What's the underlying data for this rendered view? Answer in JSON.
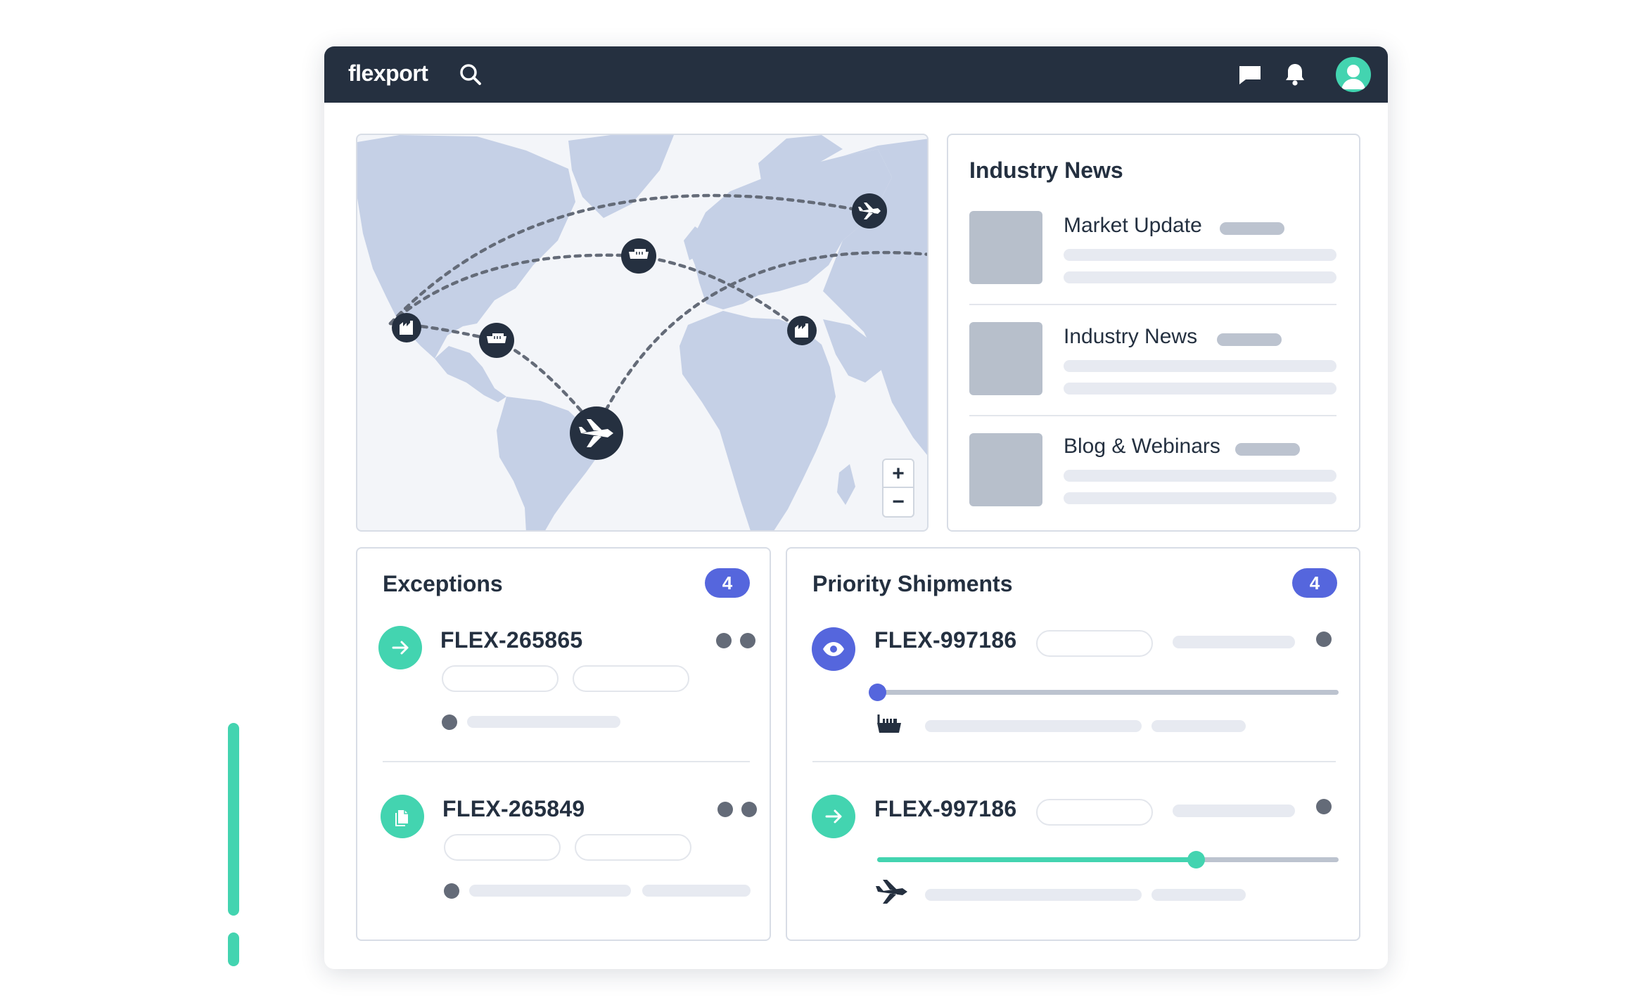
{
  "header": {
    "logo": "flexport",
    "icons": [
      "search-icon",
      "chat-icon",
      "bell-icon",
      "user-avatar-icon"
    ]
  },
  "colors": {
    "navbar": "#253040",
    "accent_teal": "#43D4B0",
    "accent_blue": "#5566DD",
    "map_land": "#c5d0e6",
    "map_water": "#f3f5f9"
  },
  "map": {
    "zoom_in_label": "+",
    "zoom_out_label": "−",
    "markers": [
      "factory-icon",
      "ship-icon",
      "ship-icon",
      "factory-icon",
      "plane-icon",
      "plane-icon"
    ]
  },
  "industry_news": {
    "title": "Industry News",
    "items": [
      {
        "label": "Market Update"
      },
      {
        "label": "Industry News"
      },
      {
        "label": "Blog & Webinars"
      }
    ]
  },
  "exceptions": {
    "title": "Exceptions",
    "count": "4",
    "items": [
      {
        "id": "FLEX-265865",
        "icon": "arrow-right-icon"
      },
      {
        "id": "FLEX-265849",
        "icon": "document-icon"
      }
    ]
  },
  "priority_shipments": {
    "title": "Priority Shipments",
    "count": "4",
    "items": [
      {
        "id": "FLEX-997186",
        "icon": "eye-icon",
        "mode": "ship-icon",
        "progress": 0.0
      },
      {
        "id": "FLEX-997186",
        "icon": "arrow-right-icon",
        "mode": "plane-icon",
        "progress": 0.69
      }
    ]
  }
}
